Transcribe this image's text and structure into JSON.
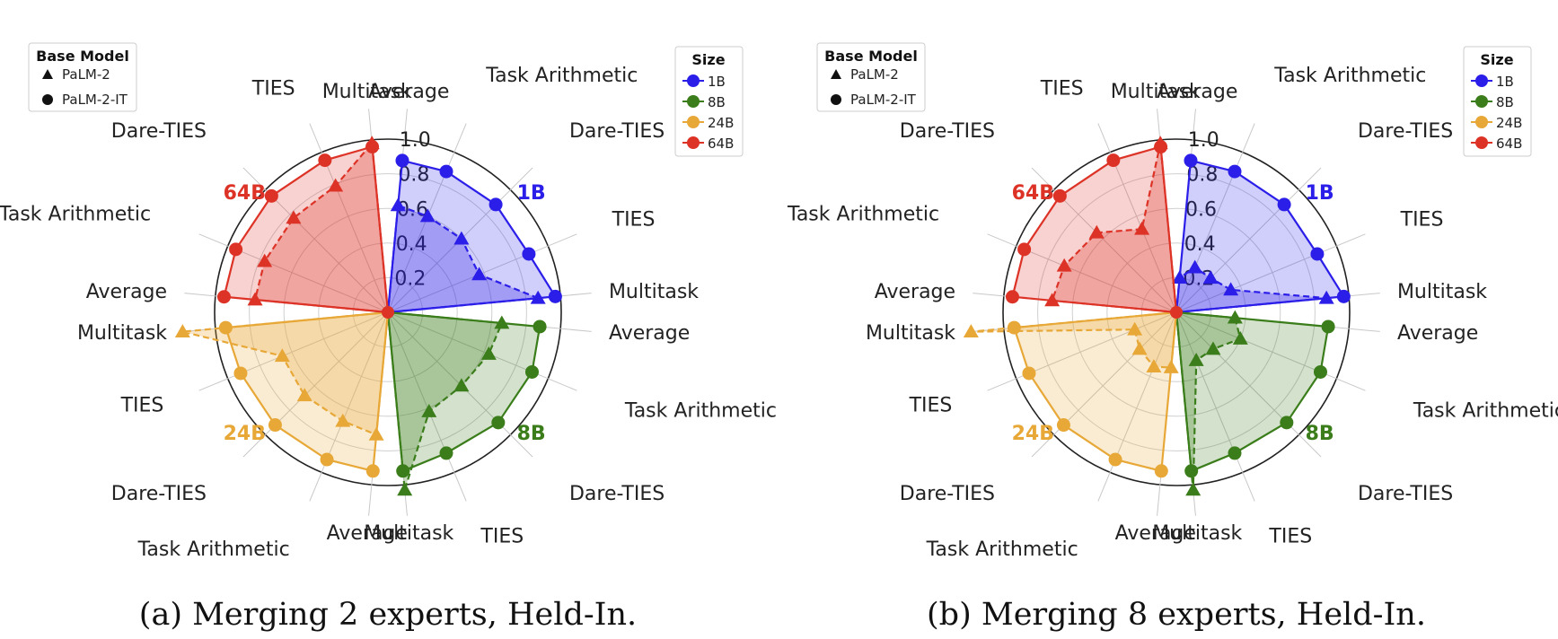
{
  "chart_data": [
    {
      "type": "radar",
      "caption": "(a) Merging 2 experts, Held-In.",
      "axis_range": [
        0,
        1.0
      ],
      "radial_ticks": [
        "0.2",
        "0.4",
        "0.6",
        "0.8",
        "1.0"
      ],
      "groups": [
        {
          "name": "1B",
          "color": "#2b1ee8",
          "spokes": [
            "Average",
            "Task Arithmetic",
            "Dare-TIES",
            "TIES",
            "Multitask"
          ],
          "PaLM-2-IT": [
            0.88,
            0.88,
            0.88,
            0.88,
            0.97
          ],
          "PaLM-2": [
            0.62,
            0.6,
            0.6,
            0.57,
            0.87
          ]
        },
        {
          "name": "8B",
          "color": "#3a7d1a",
          "spokes": [
            "Average",
            "Task Arithmetic",
            "Dare-TIES",
            "TIES",
            "Multitask"
          ],
          "PaLM-2-IT": [
            0.88,
            0.9,
            0.9,
            0.88,
            0.92
          ],
          "PaLM-2": [
            0.66,
            0.63,
            0.6,
            0.62,
            1.03
          ]
        },
        {
          "name": "24B",
          "color": "#e8a838",
          "spokes": [
            "Average",
            "Task Arithmetic",
            "Dare-TIES",
            "TIES",
            "Multitask"
          ],
          "PaLM-2-IT": [
            0.92,
            0.92,
            0.92,
            0.92,
            0.94
          ],
          "PaLM-2": [
            0.71,
            0.68,
            0.68,
            0.66,
            1.19
          ]
        },
        {
          "name": "64B",
          "color": "#dd3327",
          "spokes": [
            "Average",
            "Task Arithmetic",
            "Dare-TIES",
            "TIES",
            "Multitask"
          ],
          "PaLM-2-IT": [
            0.95,
            0.95,
            0.95,
            0.95,
            0.96
          ],
          "PaLM-2": [
            0.77,
            0.77,
            0.77,
            0.79,
            0.98
          ]
        }
      ]
    },
    {
      "type": "radar",
      "caption": "(b) Merging 8 experts, Held-In.",
      "axis_range": [
        0,
        1.0
      ],
      "radial_ticks": [
        "0.2",
        "0.4",
        "0.6",
        "0.8",
        "1.0"
      ],
      "groups": [
        {
          "name": "1B",
          "color": "#2b1ee8",
          "spokes": [
            "Average",
            "Task Arithmetic",
            "Dare-TIES",
            "TIES",
            "Multitask"
          ],
          "PaLM-2-IT": [
            0.88,
            0.88,
            0.88,
            0.88,
            0.97
          ],
          "PaLM-2": [
            0.2,
            0.28,
            0.28,
            0.34,
            0.87
          ]
        },
        {
          "name": "8B",
          "color": "#3a7d1a",
          "spokes": [
            "Average",
            "Task Arithmetic",
            "Dare-TIES",
            "TIES",
            "Multitask"
          ],
          "PaLM-2-IT": [
            0.88,
            0.9,
            0.9,
            0.88,
            0.92
          ],
          "PaLM-2": [
            0.34,
            0.4,
            0.3,
            0.3,
            1.03
          ]
        },
        {
          "name": "24B",
          "color": "#e8a838",
          "spokes": [
            "Average",
            "Task Arithmetic",
            "Dare-TIES",
            "TIES",
            "Multitask"
          ],
          "PaLM-2-IT": [
            0.92,
            0.92,
            0.92,
            0.92,
            0.94
          ],
          "PaLM-2": [
            0.32,
            0.34,
            0.3,
            0.26,
            1.19
          ]
        },
        {
          "name": "64B",
          "color": "#dd3327",
          "spokes": [
            "Average",
            "Task Arithmetic",
            "Dare-TIES",
            "TIES",
            "Multitask"
          ],
          "PaLM-2-IT": [
            0.95,
            0.95,
            0.95,
            0.95,
            0.96
          ],
          "PaLM-2": [
            0.72,
            0.7,
            0.65,
            0.52,
            0.98
          ]
        }
      ]
    }
  ],
  "legend_base": {
    "title": "Base Model",
    "items": [
      "PaLM-2",
      "PaLM-2-IT"
    ]
  },
  "legend_size": {
    "title": "Size",
    "items": [
      "1B",
      "8B",
      "24B",
      "64B"
    ]
  }
}
